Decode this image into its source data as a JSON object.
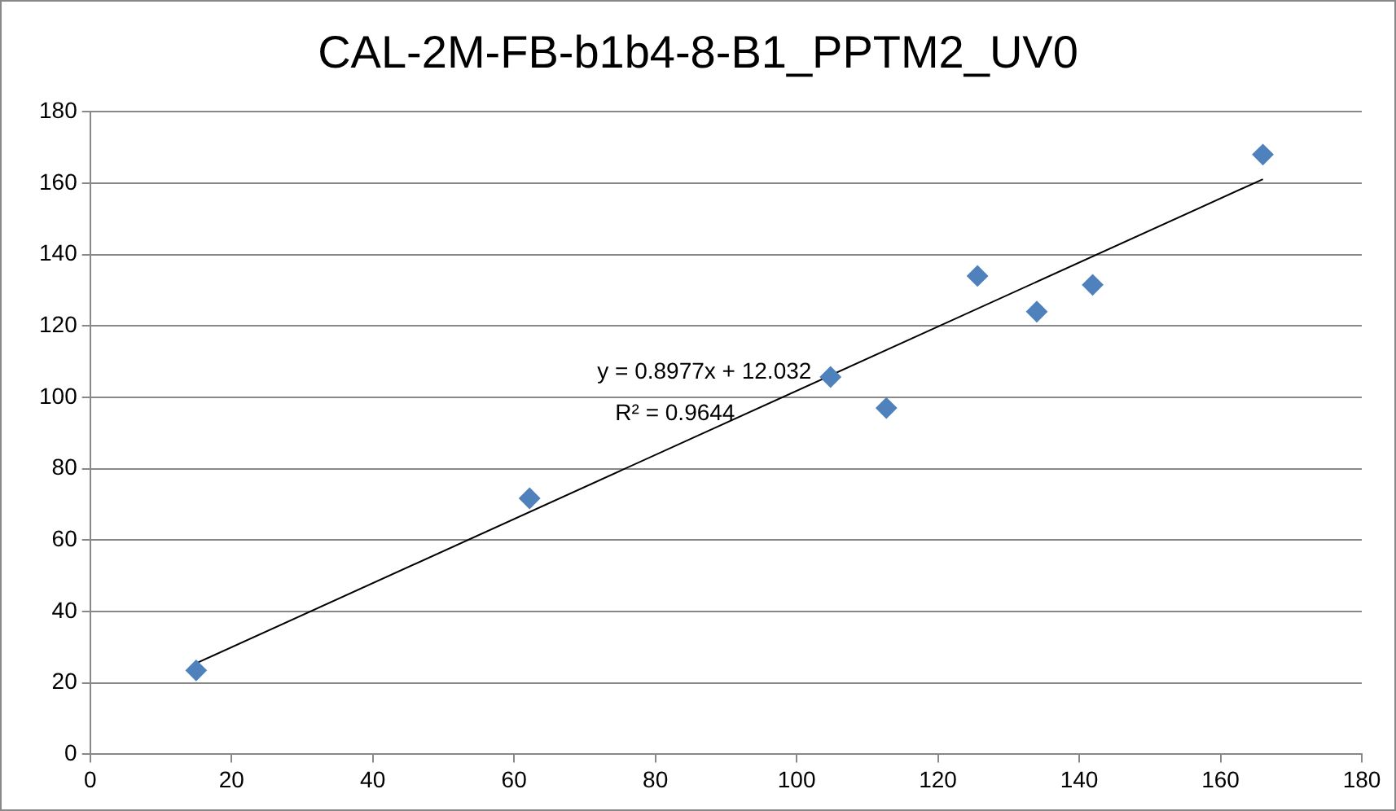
{
  "chart_data": {
    "type": "scatter",
    "title": "CAL-2M-FB-b1b4-8-B1_PPTM2_UV0",
    "series": [
      {
        "type": "scatter",
        "marker": "diamond",
        "color": "#4f81bd",
        "x": [
          15,
          62.2,
          104.8,
          112.7,
          125.6,
          134,
          141.9,
          166
        ],
        "values": [
          23.5,
          71.7,
          105.7,
          97,
          134,
          124,
          131.5,
          168
        ]
      },
      {
        "type": "line",
        "color": "#000000",
        "x": [
          15,
          166
        ],
        "values": [
          25.5,
          161.1
        ]
      }
    ],
    "xlim": [
      0,
      180
    ],
    "xticks": [
      0,
      20,
      40,
      60,
      80,
      100,
      120,
      140,
      160,
      180
    ],
    "ylim": [
      0,
      180
    ],
    "yticks": [
      0,
      20,
      40,
      60,
      80,
      100,
      120,
      140,
      160,
      180
    ],
    "grid": "y",
    "legend": false,
    "annotations": [
      "y = 0.8977x + 12.032",
      "R² = 0.9644"
    ]
  }
}
